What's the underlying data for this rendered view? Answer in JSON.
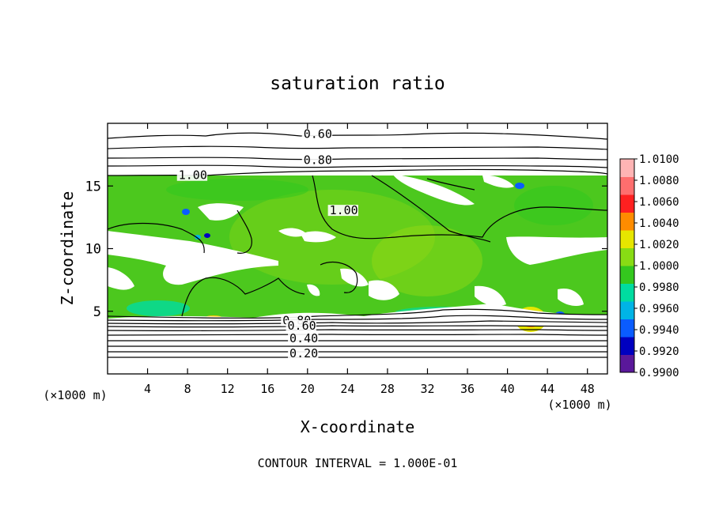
{
  "chart_data": {
    "type": "heatmap",
    "title": "saturation ratio",
    "xlabel": "X-coordinate",
    "ylabel": "Z-coordinate",
    "x_unit": "(×1000 m)",
    "y_unit": "(×1000 m)",
    "xlim": [
      0,
      50
    ],
    "ylim": [
      0,
      20
    ],
    "x_ticks": [
      4,
      8,
      12,
      16,
      20,
      24,
      28,
      32,
      36,
      40,
      44,
      48
    ],
    "y_ticks": [
      5,
      10,
      15
    ],
    "colorbar": {
      "min": 0.99,
      "max": 1.01,
      "tick_values": [
        0.99,
        0.992,
        0.994,
        0.996,
        0.998,
        1.0,
        1.002,
        1.004,
        1.006,
        1.008,
        1.01
      ],
      "tick_labels": [
        "0.9900",
        "0.9920",
        "0.9940",
        "0.9960",
        "0.9980",
        "1.0000",
        "1.0020",
        "1.0040",
        "1.0060",
        "1.0080",
        "1.0100"
      ],
      "colors": [
        "#5a189a",
        "#0000c0",
        "#0a5cff",
        "#00b4e6",
        "#00dca0",
        "#34c81e",
        "#88dc14",
        "#e6e600",
        "#ff8c00",
        "#ff2020",
        "#ff6e6e",
        "#ffb4b4"
      ]
    },
    "contour_labels": [
      {
        "text": "0.60",
        "value": 0.6,
        "x": 19.6,
        "z": 18.9
      },
      {
        "text": "0.80",
        "value": 0.8,
        "x": 19.6,
        "z": 16.8
      },
      {
        "text": "1.00",
        "value": 1.0,
        "x": 7.1,
        "z": 15.6
      },
      {
        "text": "1.00",
        "value": 1.0,
        "x": 22.2,
        "z": 12.8
      },
      {
        "text": "0.80",
        "value": 0.8,
        "x": 17.5,
        "z": 4.0
      },
      {
        "text": "0.60",
        "value": 0.6,
        "x": 18.0,
        "z": 3.6
      },
      {
        "text": "0.40",
        "value": 0.4,
        "x": 18.2,
        "z": 2.6
      },
      {
        "text": "0.20",
        "value": 0.2,
        "x": 18.2,
        "z": 1.4
      }
    ],
    "supersaturated_layer_z": [
      4.5,
      16.0
    ],
    "contour_interval": 0.1
  },
  "footer": {
    "text": "CONTOUR INTERVAL = 1.000E-01"
  }
}
